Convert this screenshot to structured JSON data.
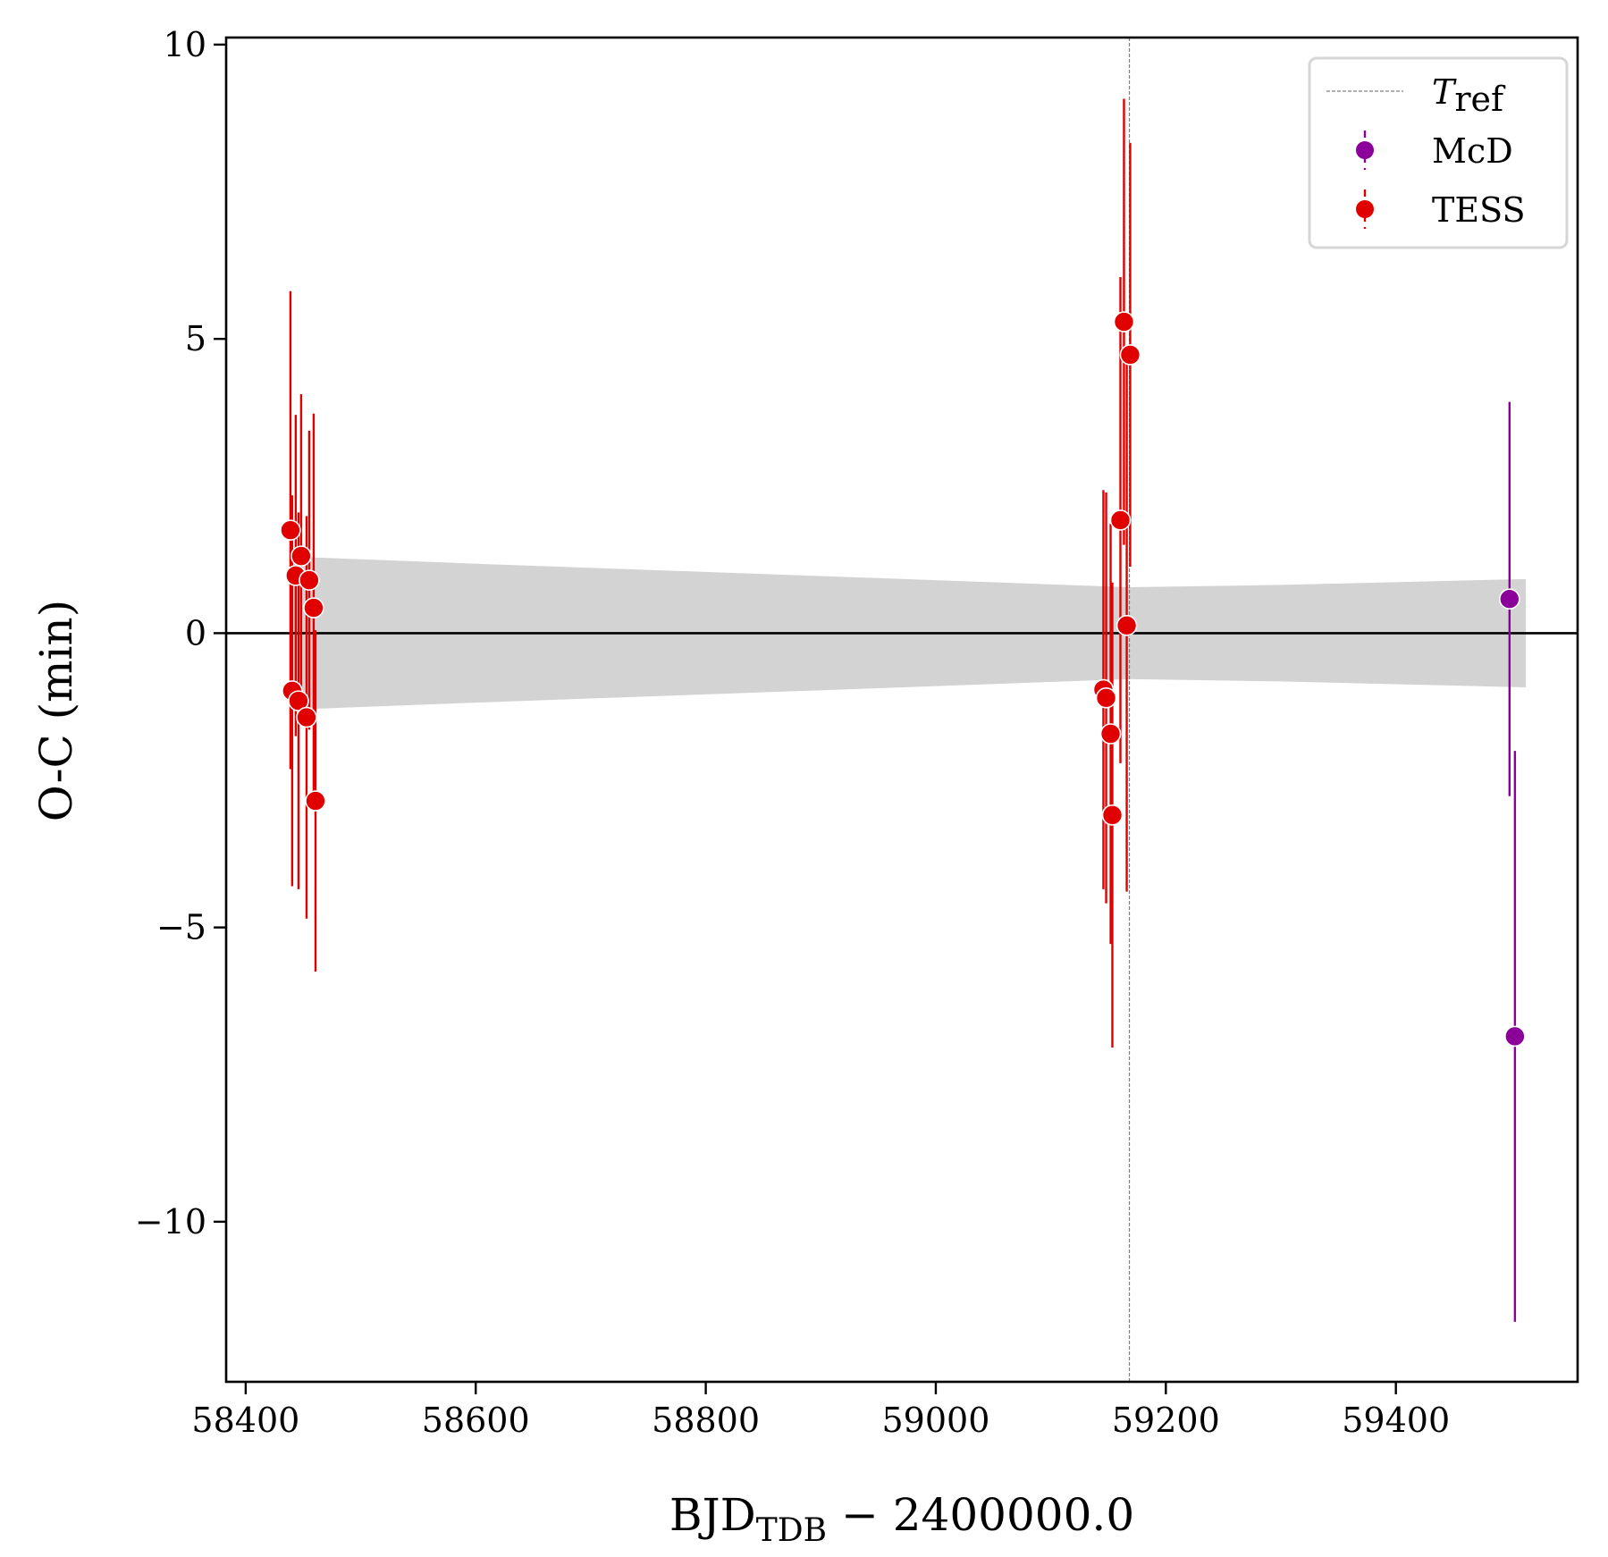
{
  "chart_data": {
    "type": "scatter",
    "title": "",
    "xlabel": {
      "main": "BJD",
      "subscript": "TDB",
      "suffix": " − 2400000.0"
    },
    "ylabel": "O-C (min)",
    "xlim": [
      58383,
      59558
    ],
    "ylim": [
      -12.72,
      10.12
    ],
    "xticks": [
      58400,
      58600,
      58800,
      59000,
      59200,
      59400
    ],
    "xtick_labels": [
      "58400",
      "58600",
      "58800",
      "59000",
      "59200",
      "59400"
    ],
    "yticks": [
      10,
      5,
      0,
      -5,
      -10
    ],
    "ytick_labels": [
      "10",
      "5",
      "0",
      "−5",
      "−10"
    ],
    "grid": false,
    "zero_line": 0,
    "reference_line": {
      "name": "T_ref",
      "x": 59168.3,
      "color": "#808080",
      "style": "dashed"
    },
    "uncertainty_band": {
      "color": "#d3d3d3",
      "x": [
        58440,
        58600,
        58800,
        59000,
        59168,
        59300,
        59513
      ],
      "half_width": [
        1.3,
        1.18,
        1.04,
        0.9,
        0.78,
        0.82,
        0.92
      ]
    },
    "legend": {
      "placement": "top-right",
      "entries": [
        {
          "label": "T",
          "label_sub": "ref",
          "kind": "dashed-line",
          "color": "#808080"
        },
        {
          "label": "McD",
          "kind": "errorbar-marker",
          "color": "#8b0099"
        },
        {
          "label": "TESS",
          "kind": "errorbar-marker",
          "color": "#e00000"
        }
      ]
    },
    "series": [
      {
        "name": "TESS",
        "color": "#e00000",
        "points": [
          {
            "x": 58438.9,
            "y": 1.75,
            "err": 4.06
          },
          {
            "x": 58440.4,
            "y": -0.98,
            "err": 3.32
          },
          {
            "x": 58443.5,
            "y": 0.98,
            "err": 2.73
          },
          {
            "x": 58445.9,
            "y": -1.15,
            "err": 3.2
          },
          {
            "x": 58448.2,
            "y": 1.31,
            "err": 2.75
          },
          {
            "x": 58452.9,
            "y": -1.43,
            "err": 3.42
          },
          {
            "x": 58455.2,
            "y": 0.9,
            "err": 2.54
          },
          {
            "x": 58459.1,
            "y": 0.43,
            "err": 3.3
          },
          {
            "x": 58460.7,
            "y": -2.85,
            "err": 2.9
          },
          {
            "x": 59145.7,
            "y": -0.96,
            "err": 3.39
          },
          {
            "x": 59148.1,
            "y": -1.1,
            "err": 3.49
          },
          {
            "x": 59152.0,
            "y": -1.71,
            "err": 3.57
          },
          {
            "x": 59153.5,
            "y": -3.09,
            "err": 3.95
          },
          {
            "x": 59160.5,
            "y": 1.92,
            "err": 4.13
          },
          {
            "x": 59163.6,
            "y": 5.29,
            "err": 3.79
          },
          {
            "x": 59166.0,
            "y": 0.13,
            "err": 4.52
          },
          {
            "x": 59169.0,
            "y": 4.73,
            "err": 3.6
          }
        ]
      },
      {
        "name": "McD",
        "color": "#8b0099",
        "points": [
          {
            "x": 59498.8,
            "y": 0.58,
            "err": 3.35
          },
          {
            "x": 59503.5,
            "y": -6.85,
            "err": 4.85
          }
        ]
      }
    ]
  }
}
